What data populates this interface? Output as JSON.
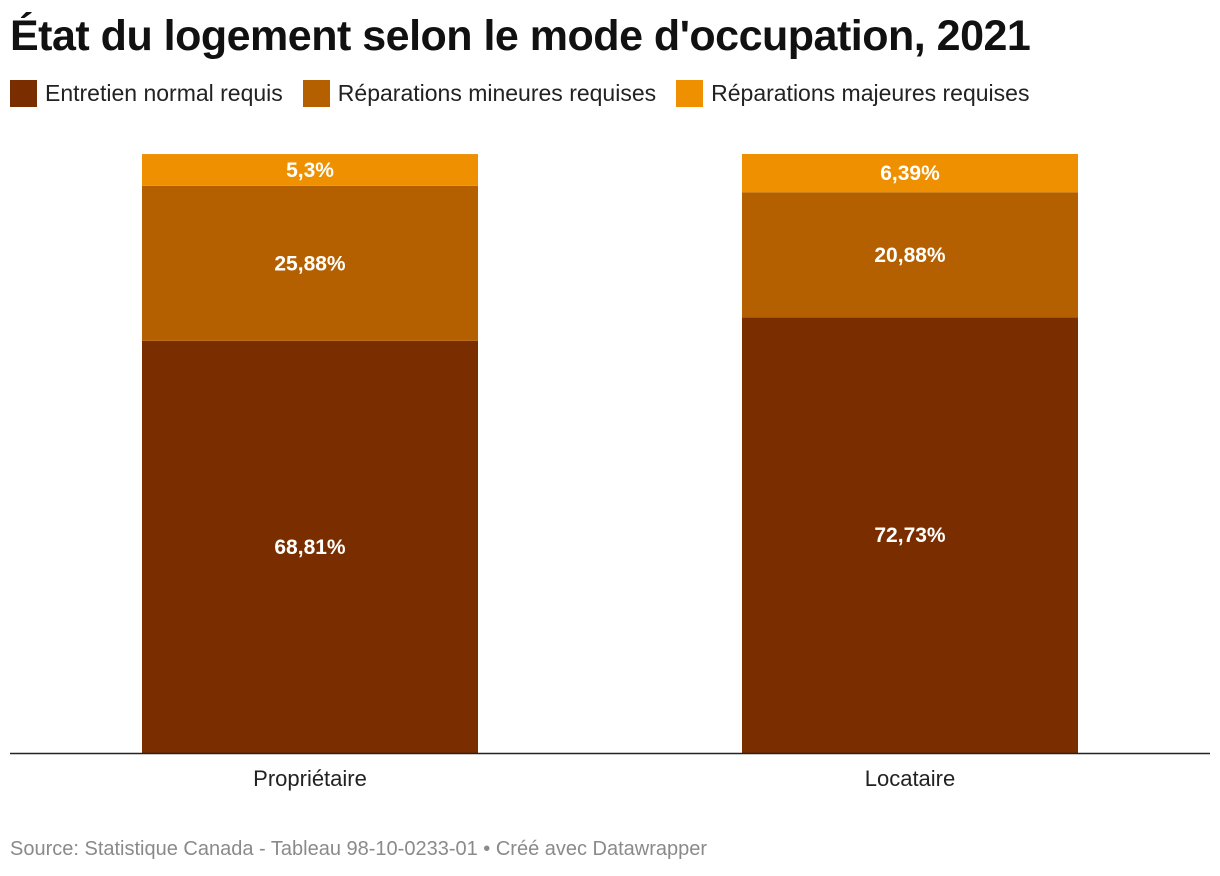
{
  "title": "État du logement selon le mode d'occupation, 2021",
  "legend": [
    {
      "label": "Entretien normal requis",
      "color": "#7a2e00"
    },
    {
      "label": "Réparations mineures requises",
      "color": "#b56000"
    },
    {
      "label": "Réparations majeures requises",
      "color": "#ee9000"
    }
  ],
  "chart_data": {
    "type": "bar",
    "stacked": true,
    "categories": [
      "Propriétaire",
      "Locataire"
    ],
    "series": [
      {
        "name": "Entretien normal requis",
        "values": [
          68.81,
          72.73
        ],
        "labels": [
          "68,81%",
          "72,73%"
        ],
        "color": "#7a2e00"
      },
      {
        "name": "Réparations mineures requises",
        "values": [
          25.88,
          20.88
        ],
        "labels": [
          "25,88%",
          "20,88%"
        ],
        "color": "#b56000"
      },
      {
        "name": "Réparations majeures requises",
        "values": [
          5.3,
          6.39
        ],
        "labels": [
          "5,3%",
          "6,39%"
        ],
        "color": "#ee9000"
      }
    ],
    "title": "État du logement selon le mode d'occupation, 2021",
    "xlabel": "",
    "ylabel": "",
    "ylim": [
      0,
      100
    ],
    "grid": false,
    "legend_position": "top-left"
  },
  "source": "Source: Statistique Canada - Tableau 98-10-0233-01 • Créé avec Datawrapper"
}
